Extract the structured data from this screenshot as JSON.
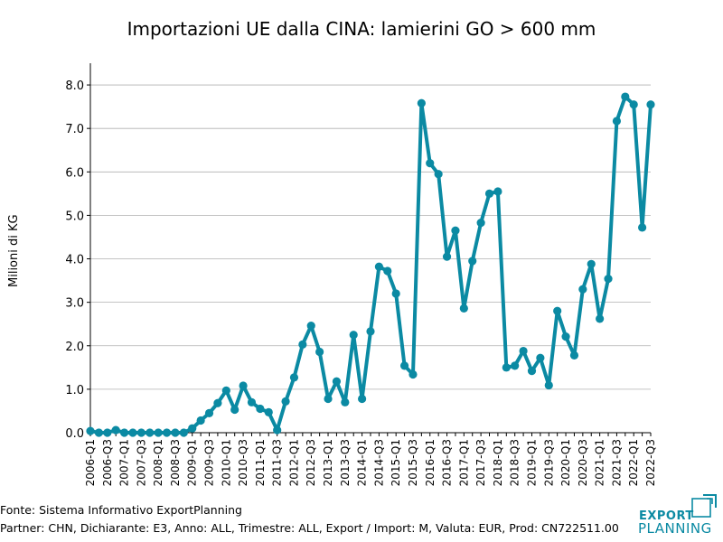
{
  "chart_data": {
    "type": "line",
    "title": "Importazioni UE dalla CINA: lamierini GO > 600 mm",
    "ylabel": "Milioni di KG",
    "xlabel": "",
    "ylim": [
      0,
      8.5
    ],
    "yticks": [
      "0.0",
      "1.0",
      "2.0",
      "3.0",
      "4.0",
      "5.0",
      "6.0",
      "7.0",
      "8.0"
    ],
    "grid": "horizontal",
    "color": "#0b8aa3",
    "x": [
      "2006-Q1",
      "2006-Q2",
      "2006-Q3",
      "2006-Q4",
      "2007-Q1",
      "2007-Q2",
      "2007-Q3",
      "2007-Q4",
      "2008-Q1",
      "2008-Q2",
      "2008-Q3",
      "2008-Q4",
      "2009-Q1",
      "2009-Q2",
      "2009-Q3",
      "2009-Q4",
      "2010-Q1",
      "2010-Q2",
      "2010-Q3",
      "2010-Q4",
      "2011-Q1",
      "2011-Q2",
      "2011-Q3",
      "2011-Q4",
      "2012-Q1",
      "2012-Q2",
      "2012-Q3",
      "2012-Q4",
      "2013-Q1",
      "2013-Q2",
      "2013-Q3",
      "2013-Q4",
      "2014-Q1",
      "2014-Q2",
      "2014-Q3",
      "2014-Q4",
      "2015-Q1",
      "2015-Q2",
      "2015-Q3",
      "2015-Q4",
      "2016-Q1",
      "2016-Q2",
      "2016-Q3",
      "2016-Q4",
      "2017-Q1",
      "2017-Q2",
      "2017-Q3",
      "2017-Q4",
      "2018-Q1",
      "2018-Q2",
      "2018-Q3",
      "2018-Q4",
      "2019-Q1",
      "2019-Q2",
      "2019-Q3",
      "2019-Q4",
      "2020-Q1",
      "2020-Q2",
      "2020-Q3",
      "2020-Q4",
      "2021-Q1",
      "2021-Q2",
      "2021-Q3",
      "2021-Q4",
      "2022-Q1",
      "2022-Q2",
      "2022-Q3"
    ],
    "xtick_labels": [
      "2006-Q1",
      "2006-Q3",
      "2007-Q1",
      "2007-Q3",
      "2008-Q1",
      "2008-Q3",
      "2009-Q1",
      "2009-Q3",
      "2010-Q1",
      "2010-Q3",
      "2011-Q1",
      "2011-Q3",
      "2012-Q1",
      "2012-Q3",
      "2013-Q1",
      "2013-Q3",
      "2014-Q1",
      "2014-Q3",
      "2015-Q1",
      "2015-Q3",
      "2016-Q1",
      "2016-Q3",
      "2017-Q1",
      "2017-Q3",
      "2018-Q1",
      "2018-Q3",
      "2019-Q1",
      "2019-Q3",
      "2020-Q1",
      "2020-Q3",
      "2021-Q1",
      "2021-Q3",
      "2022-Q1",
      "2022-Q3"
    ],
    "values": [
      0.04,
      0.0,
      0.0,
      0.06,
      0.0,
      0.0,
      0.0,
      0.0,
      0.0,
      0.0,
      0.0,
      0.0,
      0.1,
      0.28,
      0.45,
      0.68,
      0.97,
      0.53,
      1.08,
      0.7,
      0.55,
      0.47,
      0.06,
      0.72,
      1.27,
      2.03,
      2.46,
      1.86,
      0.78,
      1.18,
      0.7,
      2.25,
      0.78,
      2.33,
      3.82,
      3.72,
      3.2,
      1.54,
      1.34,
      7.58,
      6.2,
      5.95,
      4.05,
      4.65,
      2.86,
      3.95,
      4.83,
      5.5,
      5.55,
      1.5,
      1.54,
      1.88,
      1.42,
      1.72,
      1.09,
      2.8,
      2.21,
      1.78,
      3.3,
      3.88,
      2.62,
      3.54,
      7.17,
      7.73,
      7.55,
      4.72,
      7.55
    ]
  },
  "footer": {
    "source": "Fonte: Sistema Informativo ExportPlanning",
    "params": "Partner: CHN, Dichiarante: E3, Anno: ALL, Trimestre: ALL, Export / Import: M, Valuta: EUR, Prod: CN722511.00"
  },
  "logo": {
    "line1": "EXPORT",
    "line2": "PLANNING",
    "color": "#0b8aa3"
  }
}
